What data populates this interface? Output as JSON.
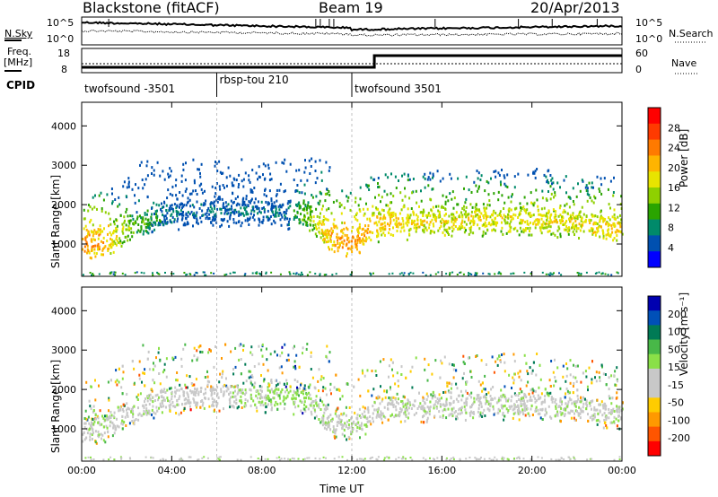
{
  "header": {
    "station": "Blackstone (fitACF)",
    "beam": "Beam 19",
    "date": "20/Apr/2013"
  },
  "noise_panel": {
    "left_label": "N.Sky",
    "right_label": "N.Search",
    "left_ticks": [
      "10^5",
      "10^0"
    ],
    "right_ticks": [
      "10^5",
      "10^0"
    ]
  },
  "freq_panel": {
    "left_label_line1": "Freq.",
    "left_label_line2": "[MHz]",
    "right_label": "Nave",
    "left_ticks": [
      "18",
      "8"
    ],
    "right_ticks": [
      "60",
      "0"
    ]
  },
  "cpid": {
    "label": "CPID",
    "segments": [
      {
        "name": "twofsound -3501",
        "start_hour": 0,
        "end_hour": 6
      },
      {
        "name": "rbsp-tou 210",
        "start_hour": 6,
        "end_hour": 12
      },
      {
        "name": "twofsound 3501",
        "start_hour": 12,
        "end_hour": 24
      }
    ]
  },
  "power_colorbar": {
    "label": "Power [dB]",
    "ticks": [
      "28",
      "24",
      "20",
      "16",
      "12",
      "8",
      "4"
    ],
    "colors": [
      "#ff0000",
      "#ff3a00",
      "#ff7a00",
      "#ffb400",
      "#e8e400",
      "#8fd000",
      "#2aa400",
      "#008a6a",
      "#0050b0",
      "#0000ff"
    ]
  },
  "velocity_colorbar": {
    "label": "Velocity [m s⁻¹]",
    "ticks": [
      "200",
      "100",
      "50",
      "15",
      "-15",
      "-50",
      "-100",
      "-200"
    ],
    "colors": [
      "#0000b0",
      "#0050b8",
      "#007a55",
      "#48b848",
      "#8ae048",
      "#c8c8c8",
      "#c8c8c8",
      "#ffcc00",
      "#ff9900",
      "#ff5500",
      "#ff0000"
    ]
  },
  "chart_data": [
    {
      "type": "heatmap",
      "title": "Power",
      "xlabel": "Time UT",
      "ylabel": "Slant Range [km]",
      "xlim_hours": [
        0,
        24
      ],
      "ylim": [
        180,
        4600
      ],
      "x_ticks": [
        "00:00",
        "04:00",
        "08:00",
        "12:00",
        "16:00",
        "20:00",
        "00:00"
      ],
      "y_ticks": [
        1000,
        2000,
        3000,
        4000
      ],
      "colorbar_range": [
        0,
        30
      ],
      "main_echo_band": {
        "time_hours": [
          0,
          1,
          2,
          3,
          4,
          5,
          6,
          7,
          8,
          9,
          10,
          11,
          12,
          13,
          14,
          16,
          18,
          20,
          22,
          24
        ],
        "range_km": [
          950,
          1100,
          1400,
          1650,
          1800,
          1850,
          1850,
          1850,
          1850,
          1850,
          1750,
          1250,
          1050,
          1500,
          1550,
          1600,
          1650,
          1650,
          1550,
          1400
        ],
        "power_db": [
          26,
          24,
          16,
          12,
          8,
          8,
          8,
          8,
          8,
          8,
          16,
          24,
          26,
          22,
          22,
          20,
          20,
          20,
          20,
          22
        ]
      }
    },
    {
      "type": "heatmap",
      "title": "Velocity",
      "xlabel": "Time UT",
      "ylabel": "Slant Range [km]",
      "xlim_hours": [
        0,
        24
      ],
      "ylim": [
        180,
        4600
      ],
      "x_ticks": [
        "00:00",
        "04:00",
        "08:00",
        "12:00",
        "16:00",
        "20:00",
        "00:00"
      ],
      "y_ticks": [
        1000,
        2000,
        3000,
        4000
      ],
      "colorbar_range": [
        -200,
        200
      ],
      "main_echo_band": {
        "time_hours": [
          0,
          1,
          2,
          3,
          4,
          5,
          6,
          7,
          8,
          9,
          10,
          11,
          12,
          13,
          14,
          16,
          18,
          20,
          22,
          24
        ],
        "range_km": [
          950,
          1100,
          1400,
          1650,
          1800,
          1850,
          1850,
          1850,
          1850,
          1850,
          1750,
          1250,
          1050,
          1500,
          1550,
          1600,
          1650,
          1650,
          1550,
          1400
        ],
        "velocity_ms": [
          0,
          0,
          0,
          0,
          0,
          -30,
          -30,
          30,
          30,
          40,
          40,
          0,
          0,
          0,
          0,
          0,
          0,
          0,
          0,
          0
        ]
      }
    }
  ]
}
